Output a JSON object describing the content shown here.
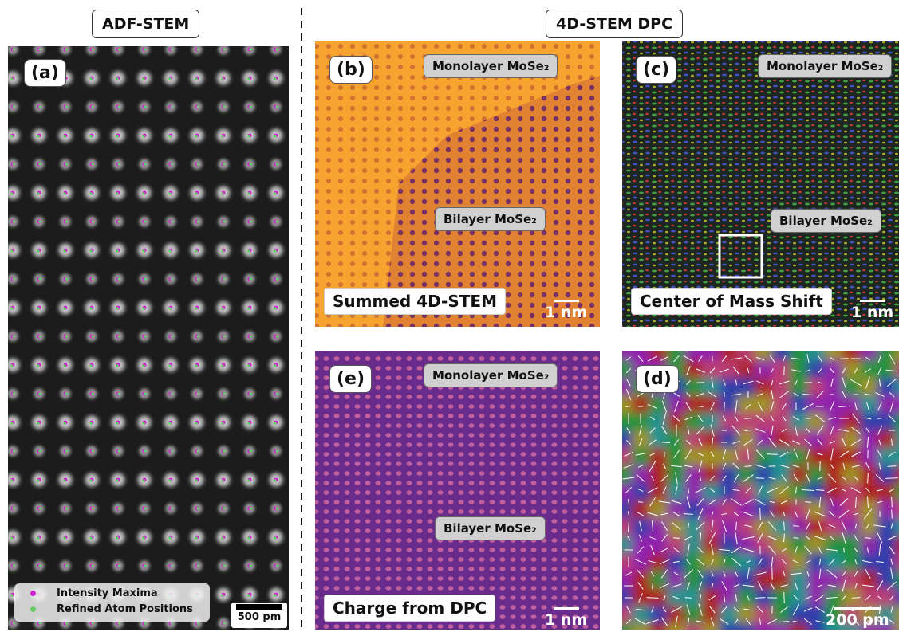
{
  "headers": {
    "left": "ADF-STEM",
    "right": "4D-STEM DPC"
  },
  "panels": {
    "a": {
      "label": "(a)",
      "legend": [
        "Intensity Maxima",
        "Refined Atom Positions"
      ],
      "scale_bar": "500 pm"
    },
    "b": {
      "label": "(b)",
      "region_labels": [
        "Monolayer MoSe₂",
        "Bilayer MoSe₂"
      ],
      "caption": "Summed 4D-STEM",
      "scale_bar": "1 nm"
    },
    "c": {
      "label": "(c)",
      "region_labels": [
        "Monolayer MoSe₂",
        "Bilayer MoSe₂"
      ],
      "caption": "Center of Mass Shift",
      "scale_bar": "1 nm"
    },
    "e": {
      "label": "(e)",
      "region_labels": [
        "Monolayer MoSe₂",
        "Bilayer MoSe₂"
      ],
      "caption": "Charge from DPC",
      "scale_bar": "1 nm"
    },
    "d": {
      "label": "(d)",
      "scale_bar": "200 pm"
    }
  }
}
